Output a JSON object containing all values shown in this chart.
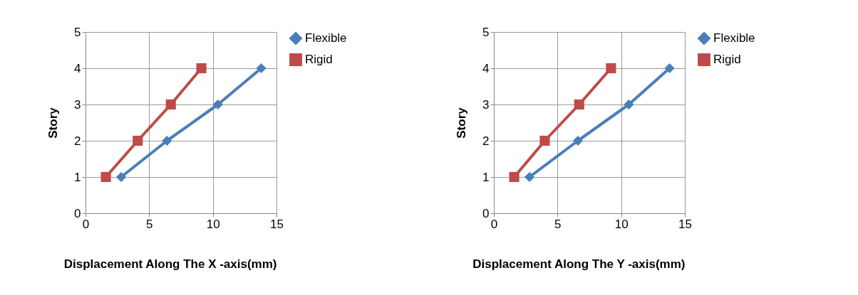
{
  "chart_data": [
    {
      "type": "line",
      "xlabel": "Displacement Along The X -axis(mm)",
      "ylabel": "Story",
      "xlim": [
        0,
        15
      ],
      "xticks": [
        0,
        5,
        10,
        15
      ],
      "ylim": [
        0,
        5
      ],
      "yticks": [
        0,
        1,
        2,
        3,
        4,
        5
      ],
      "grid": true,
      "legend": "right",
      "series": [
        {
          "name": "Flexible",
          "color": "#4a7ebb",
          "marker": "diamond",
          "x": [
            2.8,
            6.4,
            10.4,
            13.8
          ],
          "values": [
            1,
            2,
            3,
            4
          ]
        },
        {
          "name": "Rigid",
          "color": "#be4b48",
          "marker": "square",
          "x": [
            1.6,
            4.1,
            6.7,
            9.1
          ],
          "values": [
            1,
            2,
            3,
            4
          ]
        }
      ]
    },
    {
      "type": "line",
      "xlabel": "Displacement Along The Y -axis(mm)",
      "ylabel": "Story",
      "xlim": [
        0,
        15
      ],
      "xticks": [
        0,
        5,
        10,
        15
      ],
      "ylim": [
        0,
        5
      ],
      "yticks": [
        0,
        1,
        2,
        3,
        4,
        5
      ],
      "grid": true,
      "legend": "right",
      "series": [
        {
          "name": "Flexible",
          "color": "#4a7ebb",
          "marker": "diamond",
          "x": [
            2.8,
            6.6,
            10.6,
            13.8
          ],
          "values": [
            1,
            2,
            3,
            4
          ]
        },
        {
          "name": "Rigid",
          "color": "#be4b48",
          "marker": "square",
          "x": [
            1.6,
            4.0,
            6.7,
            9.2
          ],
          "values": [
            1,
            2,
            3,
            4
          ]
        }
      ]
    }
  ]
}
